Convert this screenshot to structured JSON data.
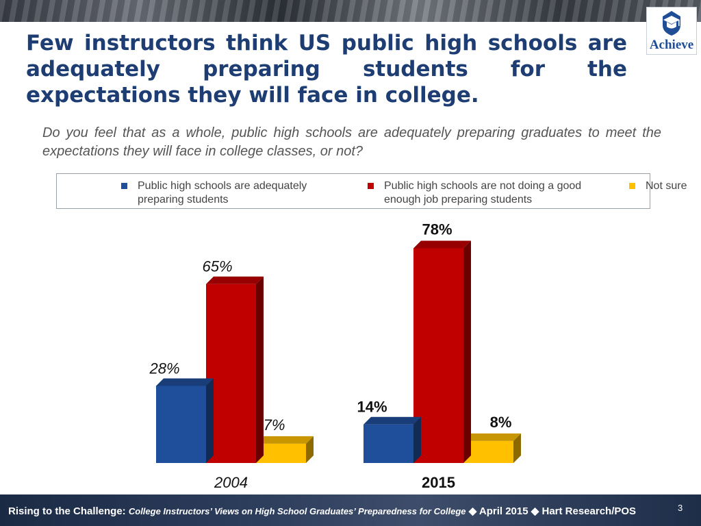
{
  "brand": {
    "logo_text": "Achieve"
  },
  "title": "Few instructors think US public high schools are adequately preparing students for the expectations they will face in college.",
  "subtitle": "Do you feel that as a whole, public high schools are adequately preparing graduates to meet the expectations they will face in college classes, or not?",
  "legend": [
    {
      "label": "Public high schools are adequately preparing students",
      "color": "#1f4e9a"
    },
    {
      "label": "Public high schools are not doing a good enough job preparing students",
      "color": "#c00000"
    },
    {
      "label": "Not sure",
      "color": "#ffc000"
    }
  ],
  "chart_data": {
    "type": "bar",
    "categories": [
      "2004",
      "2015"
    ],
    "series": [
      {
        "name": "Public high schools are adequately preparing students",
        "values": [
          28,
          14
        ],
        "labels": [
          "28%",
          "14%"
        ],
        "color": "#1f4e9a"
      },
      {
        "name": "Public high schools are not doing a good enough job preparing students",
        "values": [
          65,
          78
        ],
        "labels": [
          "65%",
          "78%"
        ],
        "color": "#c00000"
      },
      {
        "name": "Not sure",
        "values": [
          7,
          8
        ],
        "labels": [
          "7%",
          "8%"
        ],
        "color": "#ffc000"
      }
    ],
    "ylim": [
      0,
      100
    ],
    "grid": false,
    "legend_position": "top"
  },
  "footer": {
    "lead": "Rising to the Challenge:",
    "publication": "College Instructors’ Views on High School Graduates’ Preparedness for College",
    "date": "April 2015",
    "source": "Hart Research/POS",
    "separator": "◆"
  },
  "page_number": "3"
}
